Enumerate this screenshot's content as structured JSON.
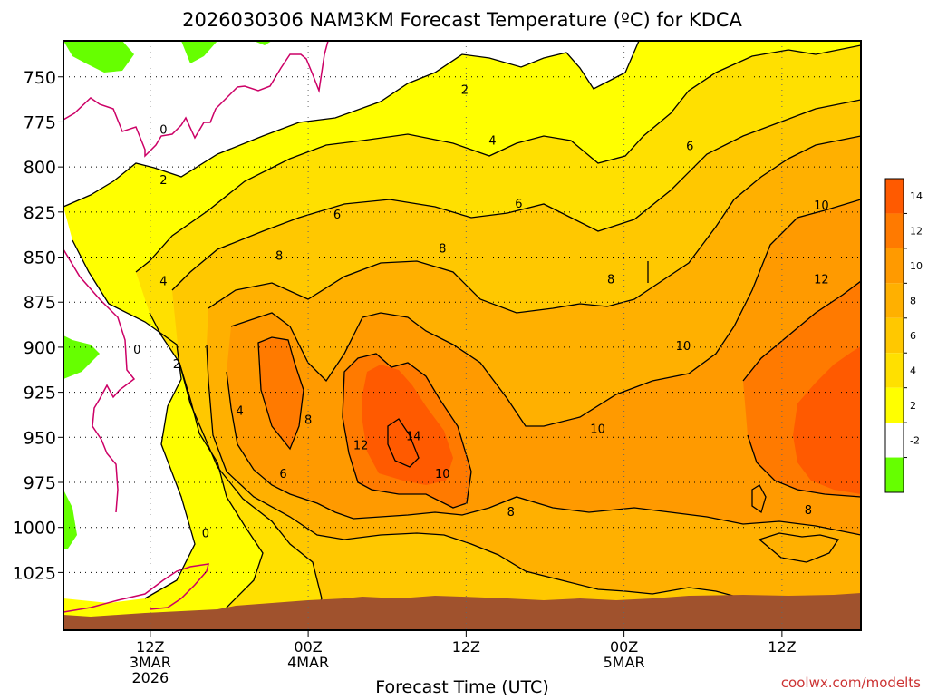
{
  "chart_data": {
    "type": "heatmap",
    "title": "2026030306 NAM3KM Forecast Temperature (ºC) for KDCA",
    "xlabel": "Forecast Time (UTC)",
    "ylabel": "",
    "credit": "coolwx.com/modelts",
    "y_ticks": [
      "750",
      "775",
      "800",
      "825",
      "850",
      "875",
      "900",
      "925",
      "950",
      "975",
      "1000",
      "1025"
    ],
    "y_tick_values": [
      750,
      775,
      800,
      825,
      850,
      875,
      900,
      925,
      950,
      975,
      1000,
      1025
    ],
    "ylim": [
      730,
      1057
    ],
    "y_inverted": true,
    "x_range_hours": [
      -6.6,
      54
    ],
    "x_ticks": [
      {
        "hours": 0,
        "lines": [
          "12Z",
          "3MAR",
          "2026"
        ]
      },
      {
        "hours": 12,
        "lines": [
          "00Z",
          "4MAR"
        ]
      },
      {
        "hours": 24,
        "lines": [
          "12Z"
        ]
      },
      {
        "hours": 36,
        "lines": [
          "00Z",
          "5MAR"
        ]
      },
      {
        "hours": 48,
        "lines": [
          "12Z"
        ]
      }
    ],
    "colorbar": {
      "labels": [
        "14",
        "12",
        "10",
        "8",
        "6",
        "4",
        "2",
        "-2"
      ],
      "bins": [
        {
          "from": 14,
          "to": 16,
          "color": "#ff5a00"
        },
        {
          "from": 12,
          "to": 14,
          "color": "#ff7a00"
        },
        {
          "from": 10,
          "to": 12,
          "color": "#ff9a00"
        },
        {
          "from": 8,
          "to": 10,
          "color": "#ffb000"
        },
        {
          "from": 6,
          "to": 8,
          "color": "#ffc800"
        },
        {
          "from": 4,
          "to": 6,
          "color": "#ffe000"
        },
        {
          "from": 2,
          "to": 4,
          "color": "#ffff00"
        },
        {
          "from": -2,
          "to": 2,
          "color": "#ffffff"
        },
        {
          "from": -4,
          "to": -2,
          "color": "#66ff00"
        }
      ]
    },
    "contour_labels": [
      {
        "text": "2",
        "hours": 23.9,
        "hpa": 757
      },
      {
        "text": "0",
        "hours": 1.0,
        "hpa": 779
      },
      {
        "text": "4",
        "hours": 26.0,
        "hpa": 785
      },
      {
        "text": "6",
        "hours": 41.0,
        "hpa": 788
      },
      {
        "text": "2",
        "hours": 1.0,
        "hpa": 807
      },
      {
        "text": "6",
        "hours": 28.0,
        "hpa": 820
      },
      {
        "text": "10",
        "hours": 51.0,
        "hpa": 821
      },
      {
        "text": "6",
        "hours": 14.2,
        "hpa": 826
      },
      {
        "text": "8",
        "hours": 22.2,
        "hpa": 845
      },
      {
        "text": "8",
        "hours": 9.8,
        "hpa": 849
      },
      {
        "text": "8",
        "hours": 35.0,
        "hpa": 862
      },
      {
        "text": "12",
        "hours": 51.0,
        "hpa": 862
      },
      {
        "text": "4",
        "hours": 1.0,
        "hpa": 863
      },
      {
        "text": "10",
        "hours": 40.5,
        "hpa": 899
      },
      {
        "text": "0",
        "hours": -1.0,
        "hpa": 901
      },
      {
        "text": "2",
        "hours": 2.0,
        "hpa": 909
      },
      {
        "text": "4",
        "hours": 6.8,
        "hpa": 935
      },
      {
        "text": "8",
        "hours": 12.0,
        "hpa": 940
      },
      {
        "text": "14",
        "hours": 20.0,
        "hpa": 949
      },
      {
        "text": "10",
        "hours": 34.0,
        "hpa": 945
      },
      {
        "text": "12",
        "hours": 16.0,
        "hpa": 954
      },
      {
        "text": "6",
        "hours": 10.1,
        "hpa": 970
      },
      {
        "text": "10",
        "hours": 22.2,
        "hpa": 970
      },
      {
        "text": "8",
        "hours": 27.4,
        "hpa": 991
      },
      {
        "text": "8",
        "hours": 50.0,
        "hpa": 990
      },
      {
        "text": "0",
        "hours": 4.2,
        "hpa": 1003
      }
    ]
  }
}
